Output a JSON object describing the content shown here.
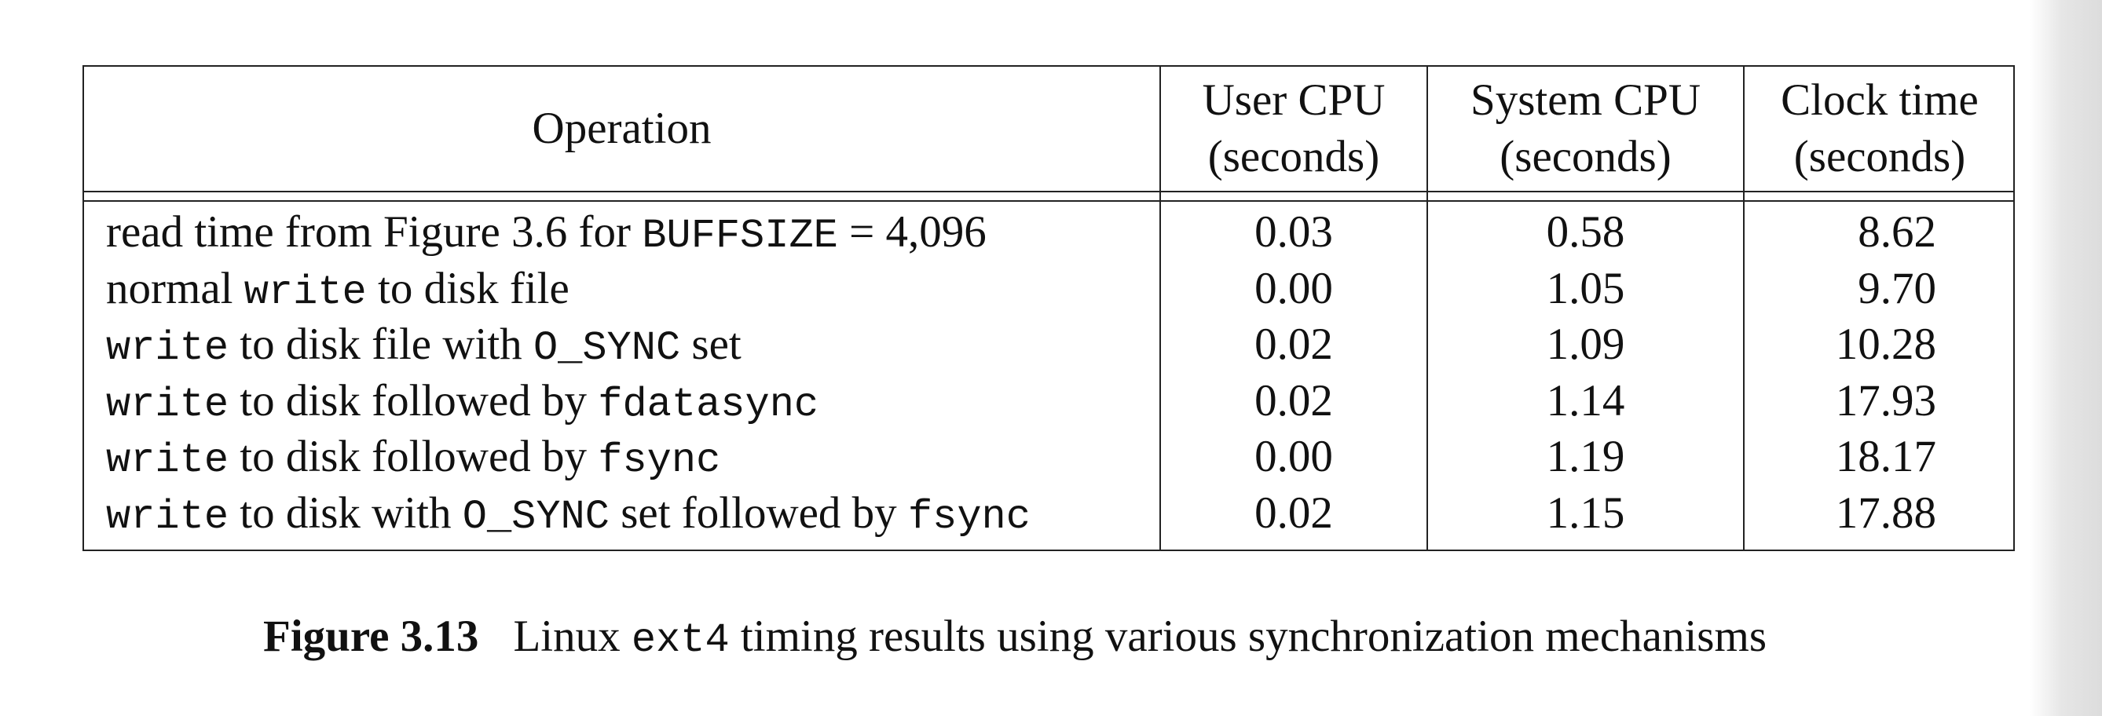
{
  "table": {
    "headers": {
      "operation": "Operation",
      "user_cpu": [
        "User CPU",
        "(seconds)"
      ],
      "system_cpu": [
        "System CPU",
        "(seconds)"
      ],
      "clock_time": [
        "Clock time",
        "(seconds)"
      ]
    },
    "rows": [
      {
        "op": [
          {
            "t": "read time from Figure 3.6 for ",
            "mono": false
          },
          {
            "t": "BUFFSIZE",
            "mono": true
          },
          {
            "t": " = 4,096",
            "mono": false
          }
        ],
        "user": "0.03",
        "system": "0.58",
        "clock": "8.62"
      },
      {
        "op": [
          {
            "t": "normal ",
            "mono": false
          },
          {
            "t": "write",
            "mono": true
          },
          {
            "t": " to disk file",
            "mono": false
          }
        ],
        "user": "0.00",
        "system": "1.05",
        "clock": "9.70"
      },
      {
        "op": [
          {
            "t": "write",
            "mono": true
          },
          {
            "t": " to disk file with ",
            "mono": false
          },
          {
            "t": "O_SYNC",
            "mono": true
          },
          {
            "t": " set",
            "mono": false
          }
        ],
        "user": "0.02",
        "system": "1.09",
        "clock": "10.28"
      },
      {
        "op": [
          {
            "t": "write",
            "mono": true
          },
          {
            "t": " to disk followed by ",
            "mono": false
          },
          {
            "t": "fdatasync",
            "mono": true
          }
        ],
        "user": "0.02",
        "system": "1.14",
        "clock": "17.93"
      },
      {
        "op": [
          {
            "t": "write",
            "mono": true
          },
          {
            "t": " to disk followed by ",
            "mono": false
          },
          {
            "t": "fsync",
            "mono": true
          }
        ],
        "user": "0.00",
        "system": "1.19",
        "clock": "18.17"
      },
      {
        "op": [
          {
            "t": "write",
            "mono": true
          },
          {
            "t": " to disk with ",
            "mono": false
          },
          {
            "t": "O_SYNC",
            "mono": true
          },
          {
            "t": " set followed by ",
            "mono": false
          },
          {
            "t": "fsync",
            "mono": true
          }
        ],
        "user": "0.02",
        "system": "1.15",
        "clock": "17.88"
      }
    ]
  },
  "caption": {
    "label": "Figure 3.13",
    "text_before": "Linux ",
    "mono": "ext4",
    "text_after": " timing results using various synchronization mechanisms"
  }
}
